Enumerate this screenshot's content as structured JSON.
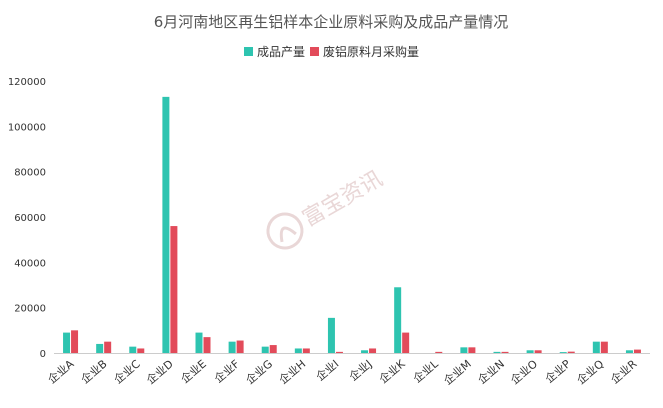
{
  "chart_data": {
    "type": "bar",
    "title": "6月河南地区再生铝样本企业原料采购及成品产量情况",
    "xlabel": "",
    "ylabel": "",
    "ylim": [
      0,
      120000
    ],
    "yticks": [
      "0",
      "20000",
      "40000",
      "60000",
      "80000",
      "100000",
      "120000"
    ],
    "legend_position": "top-center",
    "grid": false,
    "categories": [
      "企业A",
      "企业B",
      "企业C",
      "企业D",
      "企业E",
      "企业F",
      "企业G",
      "企业H",
      "企业I",
      "企业J",
      "企业K",
      "企业L",
      "企业M",
      "企业N",
      "企业O",
      "企业P",
      "企业Q",
      "企业R"
    ],
    "series": [
      {
        "name": "成品产量",
        "color": "#2ec4b0",
        "values": [
          9000,
          4000,
          2800,
          113000,
          9000,
          5000,
          2800,
          2000,
          15500,
          1200,
          29000,
          0,
          2500,
          500,
          1200,
          400,
          5000,
          1200
        ]
      },
      {
        "name": "废铝原料月采购量",
        "color": "#e24b5a",
        "values": [
          10000,
          5000,
          2000,
          56000,
          7000,
          5500,
          3500,
          2000,
          500,
          2000,
          9000,
          500,
          2500,
          500,
          1200,
          600,
          5000,
          1500
        ]
      }
    ]
  },
  "watermark": {
    "text": "富宝资讯"
  }
}
